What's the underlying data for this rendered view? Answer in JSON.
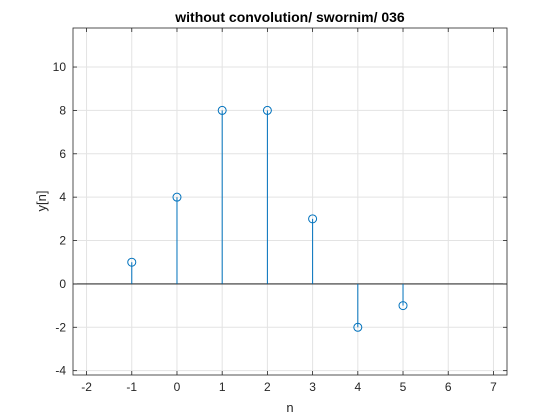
{
  "chart_data": {
    "type": "stem",
    "title": "without convolution/ swornim/ 036",
    "xlabel": "n",
    "ylabel": "y[n]",
    "xlim": [
      -2.3,
      7.3
    ],
    "ylim": [
      -4.2,
      11.8
    ],
    "x_ticks": [
      -2,
      -1,
      0,
      1,
      2,
      3,
      4,
      5,
      6,
      7
    ],
    "y_ticks": [
      -4,
      -2,
      0,
      2,
      4,
      6,
      8,
      10
    ],
    "grid": true,
    "baseline": 0,
    "series": [
      {
        "x": [
          -1,
          0,
          1,
          2,
          3,
          4,
          5
        ],
        "y": [
          1,
          4,
          8,
          8,
          3,
          -2,
          -1
        ],
        "color": "#0072BD",
        "marker": "circle"
      }
    ]
  }
}
